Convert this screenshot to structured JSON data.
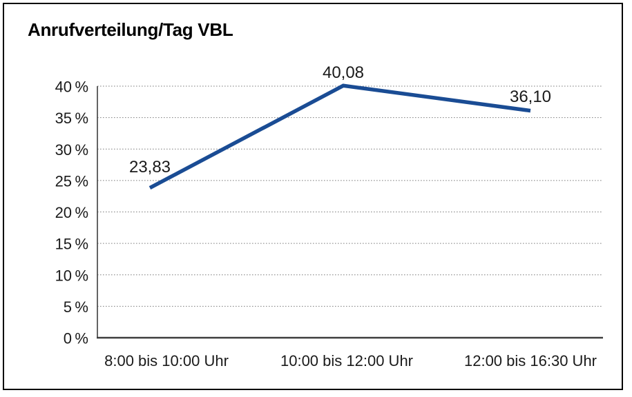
{
  "chart_data": {
    "type": "line",
    "title": "Anrufverteilung/Tag VBL",
    "categories": [
      "8:00 bis 10:00 Uhr",
      "10:00 bis 12:00 Uhr",
      "12:00 bis 16:30 Uhr"
    ],
    "values": [
      23.83,
      40.08,
      36.1
    ],
    "point_labels": [
      "23,83",
      "40,08",
      "36,10"
    ],
    "xlabel": "",
    "ylabel": "",
    "ylim": [
      0,
      40
    ],
    "ytick_step": 5,
    "ytick_labels": [
      "0 %",
      "5 %",
      "10 %",
      "15 %",
      "20 %",
      "25 %",
      "30 %",
      "35 %",
      "40 %"
    ],
    "grid": "horizontal-dotted",
    "legend": "none"
  },
  "colors": {
    "line": "#1a4c94",
    "grid": "#7f7f7f",
    "axis": "#3d3d3d",
    "text": "#1a1a1a",
    "frame_border": "#000000",
    "background": "#ffffff"
  }
}
